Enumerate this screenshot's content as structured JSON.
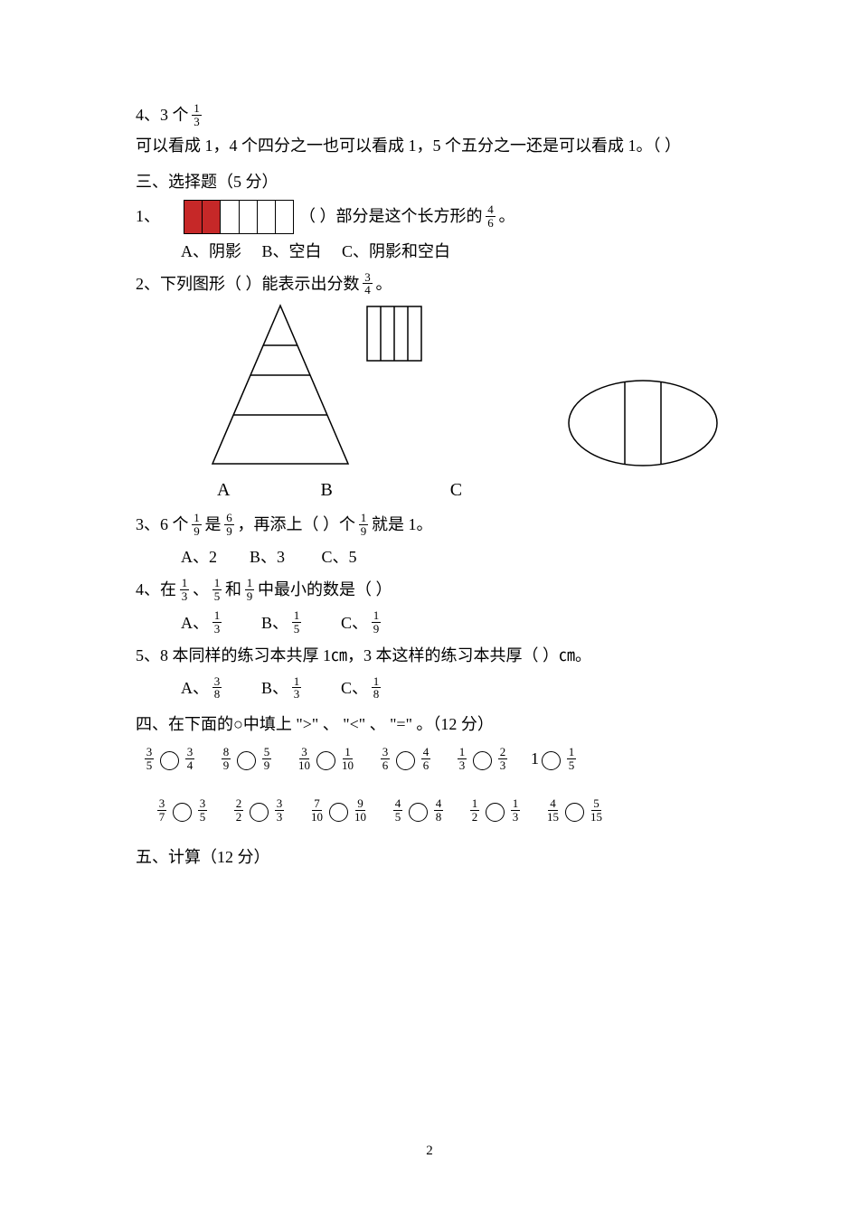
{
  "pageNumber": "2",
  "tf4": {
    "prefix": "4、3 个",
    "frac": {
      "n": "1",
      "d": "3"
    },
    "mid": "可以看成 1，4 个四分之一也可以看成 1，5 个五分之一还是可以看成 1。（ ）"
  },
  "sec3_title": "三、选择题（5 分）",
  "q1": {
    "lead": "1、",
    "after": "（ ）部分是这个长方形的",
    "frac": {
      "n": "4",
      "d": "6"
    },
    "period": "。",
    "opts": "A、阴影     B、空白     C、阴影和空白",
    "filled": 2,
    "total": 6,
    "fillColor": "#c62828"
  },
  "q2": {
    "line": "2、下列图形（   ）能表示出分数",
    "frac": {
      "n": "3",
      "d": "4"
    },
    "period": "。",
    "labels": {
      "a": "A",
      "b": "B",
      "c": "C"
    }
  },
  "q3": {
    "lead": "3、6 个",
    "f1": {
      "n": "1",
      "d": "9"
    },
    "mid1": "是",
    "f2": {
      "n": "6",
      "d": "9"
    },
    "mid2": "，再添上（   ）个",
    "f3": {
      "n": "1",
      "d": "9"
    },
    "tail": "就是 1。",
    "opts": "A、2        B、3         C、5"
  },
  "q4": {
    "lead": "4、在",
    "f1": {
      "n": "1",
      "d": "3"
    },
    "sep1": "、",
    "f2": {
      "n": "1",
      "d": "5"
    },
    "sep2": "和",
    "f3": {
      "n": "1",
      "d": "9"
    },
    "tail": "中最小的数是（   ）",
    "optA": "A、",
    "fA": {
      "n": "1",
      "d": "3"
    },
    "optB": "B、",
    "fB": {
      "n": "1",
      "d": "5"
    },
    "optC": "C、",
    "fC": {
      "n": "1",
      "d": "9"
    }
  },
  "q5": {
    "line": "5、8 本同样的练习本共厚 1㎝，3 本这样的练习本共厚（   ）㎝。",
    "optA": "A、",
    "fA": {
      "n": "3",
      "d": "8"
    },
    "optB": "B、",
    "fB": {
      "n": "1",
      "d": "3"
    },
    "optC": "C、",
    "fC": {
      "n": "1",
      "d": "8"
    }
  },
  "sec4_title": "四、在下面的○中填上 \">\" 、 \"<\" 、 \"=\" 。（12 分）",
  "compare_row1": [
    {
      "l": {
        "n": "3",
        "d": "5"
      },
      "r": {
        "n": "3",
        "d": "4"
      }
    },
    {
      "l": {
        "n": "8",
        "d": "9"
      },
      "r": {
        "n": "5",
        "d": "9"
      }
    },
    {
      "l": {
        "n": "3",
        "d": "10"
      },
      "r": {
        "n": "1",
        "d": "10"
      }
    },
    {
      "l": {
        "n": "3",
        "d": "6"
      },
      "r": {
        "n": "4",
        "d": "6"
      }
    },
    {
      "l": {
        "n": "1",
        "d": "3"
      },
      "r": {
        "n": "2",
        "d": "3"
      }
    },
    {
      "ltext": "1",
      "r": {
        "n": "1",
        "d": "5"
      }
    }
  ],
  "compare_row2": [
    {
      "l": {
        "n": "3",
        "d": "7"
      },
      "r": {
        "n": "3",
        "d": "5"
      }
    },
    {
      "l": {
        "n": "2",
        "d": "2"
      },
      "r": {
        "n": "3",
        "d": "3"
      }
    },
    {
      "l": {
        "n": "7",
        "d": "10"
      },
      "r": {
        "n": "9",
        "d": "10"
      }
    },
    {
      "l": {
        "n": "4",
        "d": "5"
      },
      "r": {
        "n": "4",
        "d": "8"
      }
    },
    {
      "l": {
        "n": "1",
        "d": "2"
      },
      "r": {
        "n": "1",
        "d": "3"
      }
    },
    {
      "l": {
        "n": "4",
        "d": "15"
      },
      "r": {
        "n": "5",
        "d": "15"
      }
    }
  ],
  "sec5_title": "五、计算（12 分）"
}
